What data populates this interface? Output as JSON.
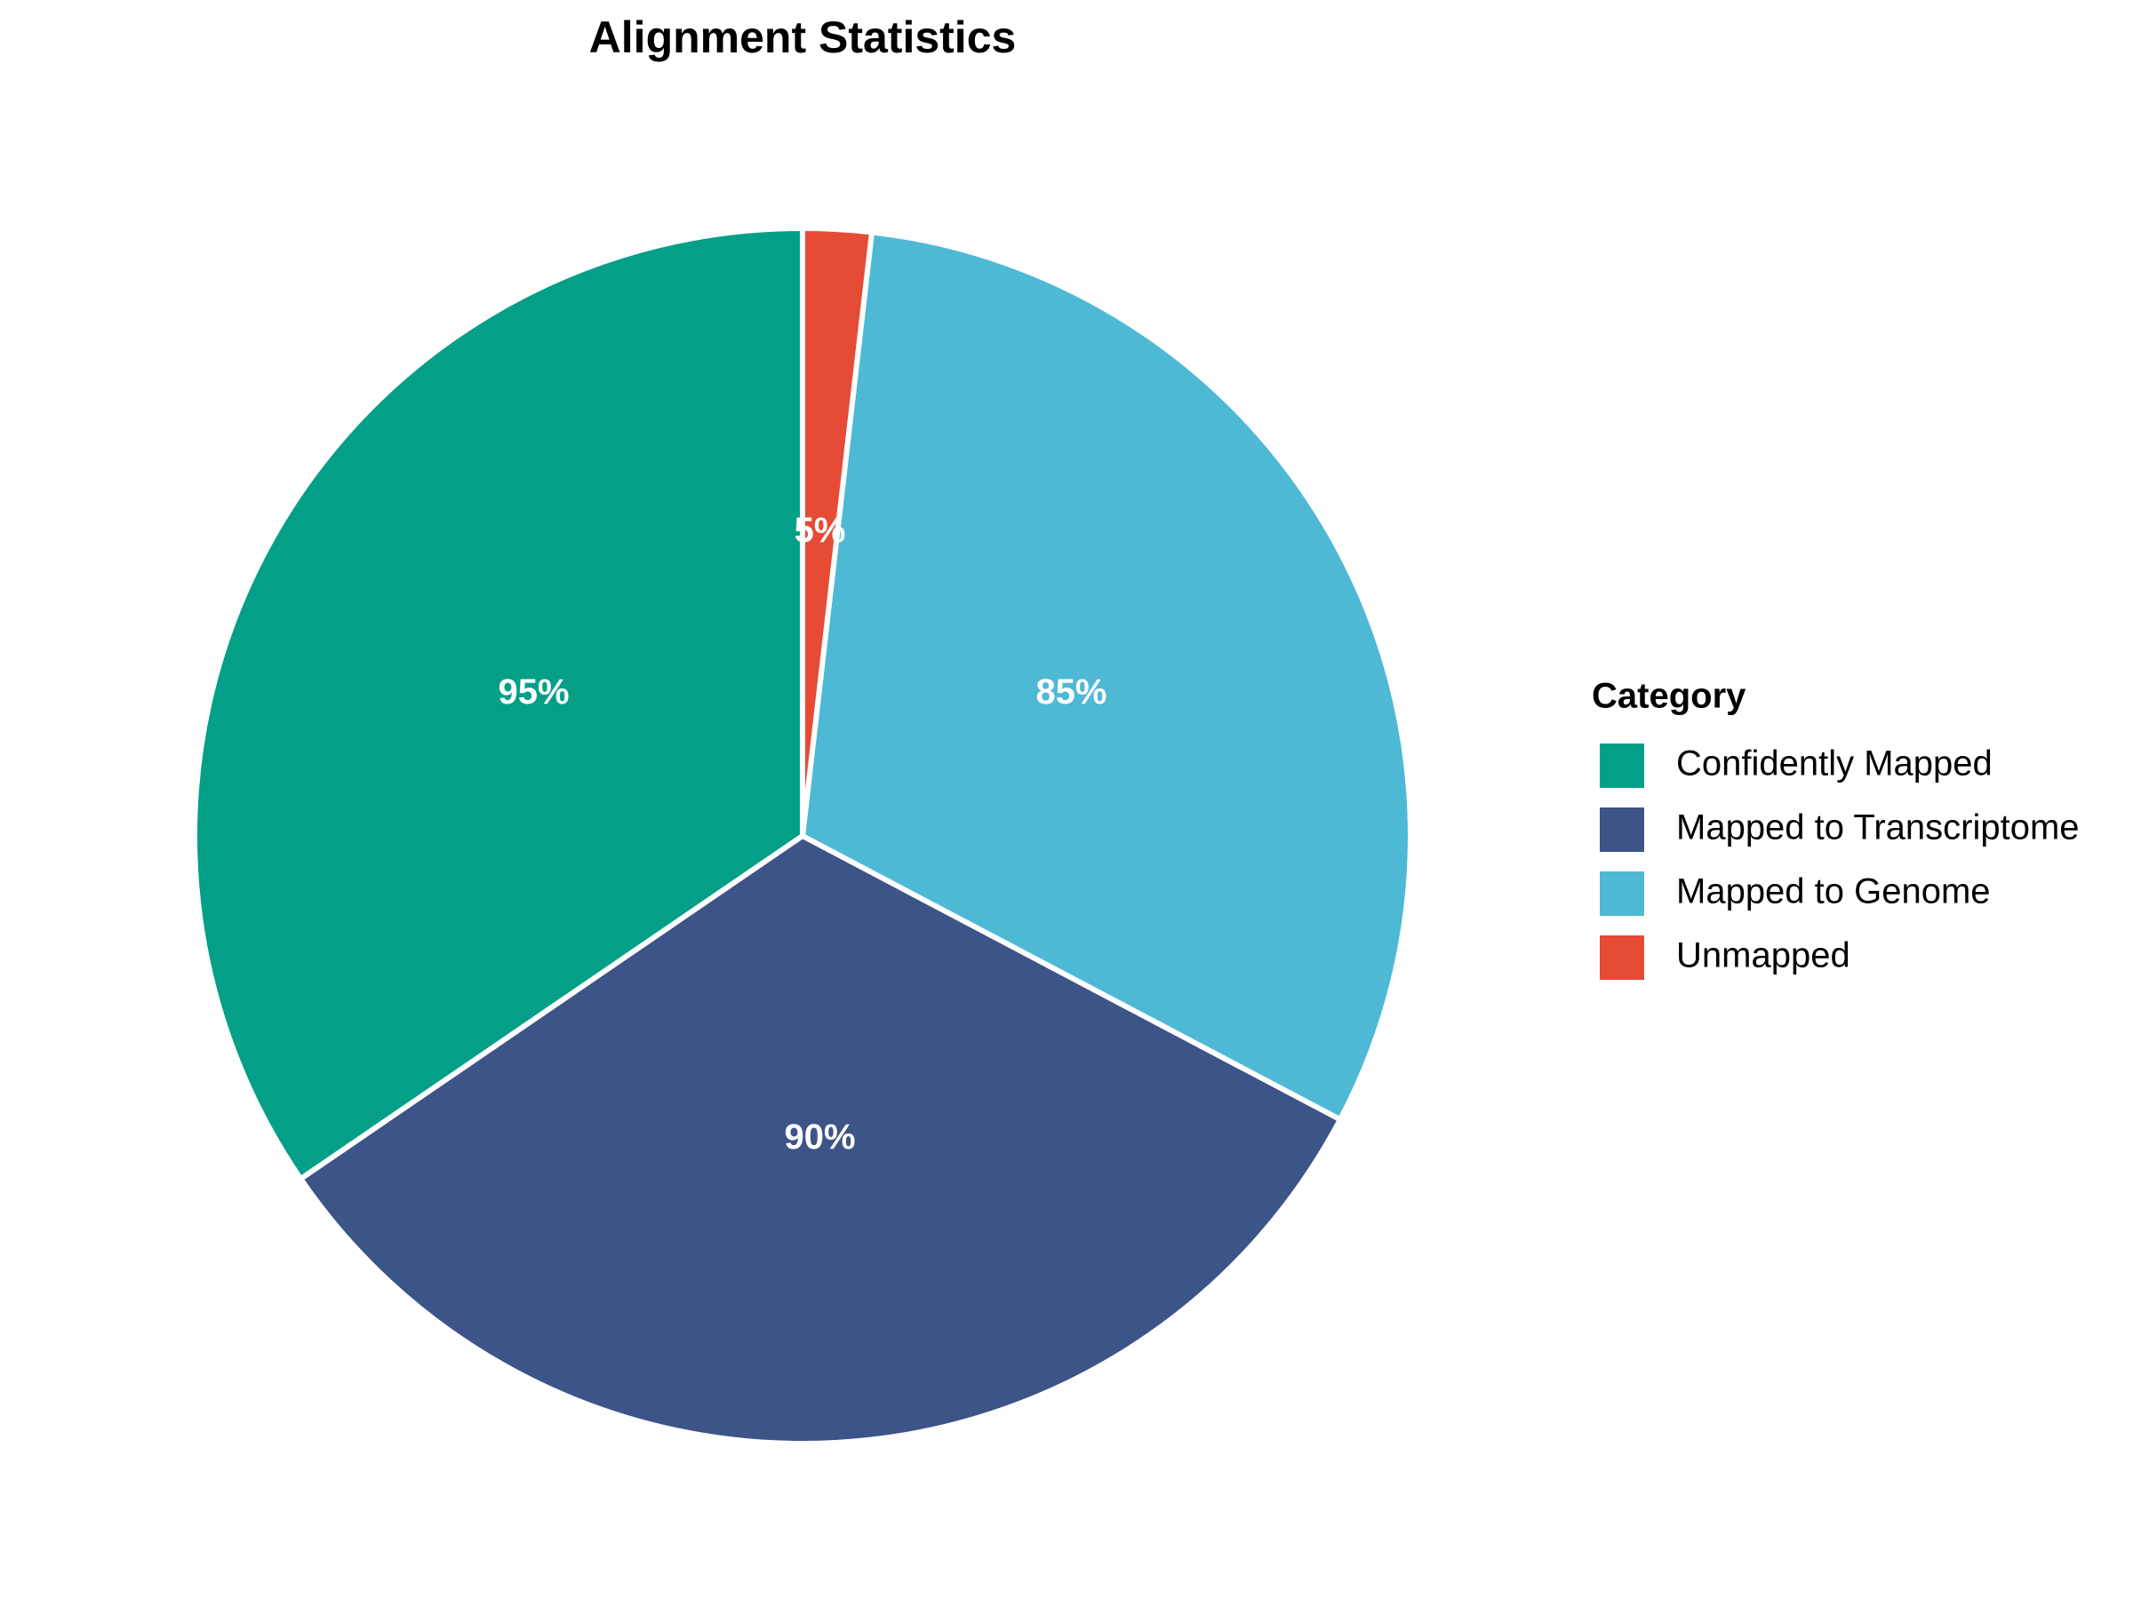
{
  "chart_data": {
    "type": "pie",
    "title": "Alignment Statistics",
    "categories": [
      "Confidently Mapped",
      "Mapped to Transcriptome",
      "Mapped to Genome",
      "Unmapped"
    ],
    "values": [
      95,
      90,
      85,
      5
    ],
    "value_labels": [
      "95%",
      "90%",
      "85%",
      "5%"
    ],
    "colors": [
      "#03a087",
      "#3d5488",
      "#4eb9d5",
      "#e64b35"
    ],
    "legend_title": "Category",
    "legend": "right"
  }
}
